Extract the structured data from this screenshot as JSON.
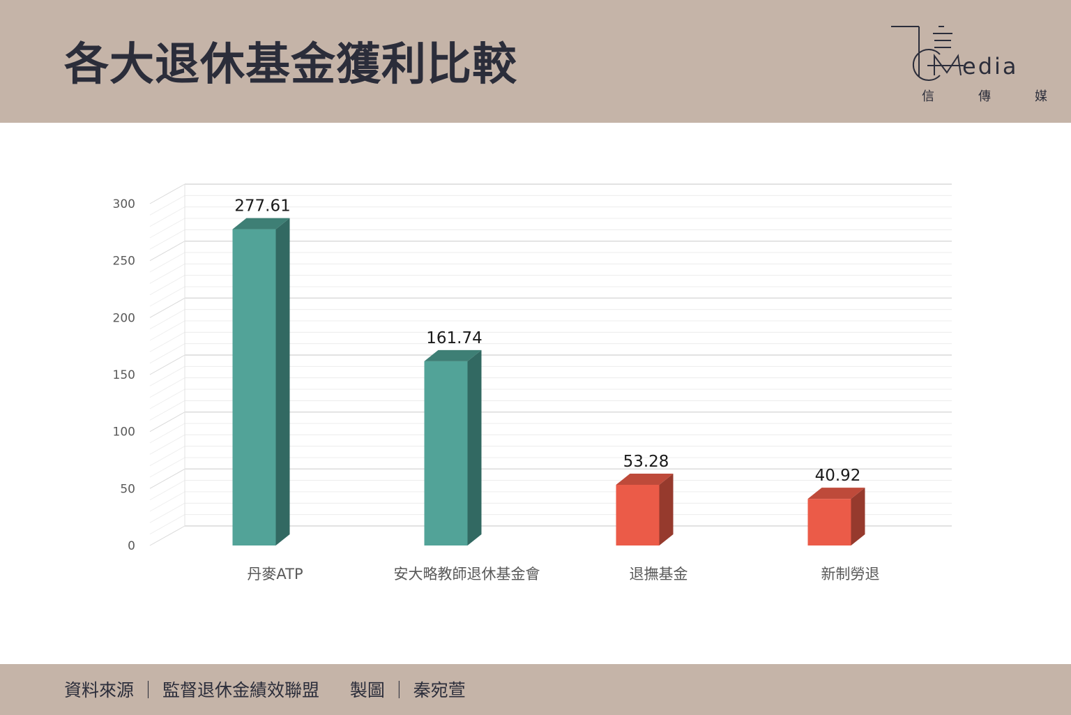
{
  "header": {
    "title": "各大退休基金獲利比較",
    "logo_word": "edia",
    "logo_sub": [
      "信",
      "傳",
      "媒"
    ]
  },
  "chart_data": {
    "type": "bar",
    "categories": [
      "丹麥ATP",
      "安大略教師退休基金會",
      "退撫基金",
      "新制勞退"
    ],
    "values": [
      277.61,
      161.74,
      53.28,
      40.92
    ],
    "value_labels": [
      "277.61",
      "161.74",
      "53.28",
      "40.92"
    ],
    "yticks": [
      "0",
      "50",
      "100",
      "150",
      "200",
      "250",
      "300"
    ],
    "ylim": [
      0,
      300
    ],
    "colors": {
      "teal_front": "#52a398",
      "teal_side": "#326962",
      "teal_top": "#3e7f75",
      "red_front": "#eb5b48",
      "red_side": "#963a2d",
      "red_top": "#be4a3a"
    },
    "bar_color_keys": [
      "teal",
      "teal",
      "red",
      "red"
    ],
    "grid": true,
    "style": "3d-column"
  },
  "footer": {
    "source_label": "資料來源",
    "source_value": "監督退休金績效聯盟",
    "author_label": "製圖",
    "author_value": "秦宛萱",
    "divider": "｜"
  }
}
